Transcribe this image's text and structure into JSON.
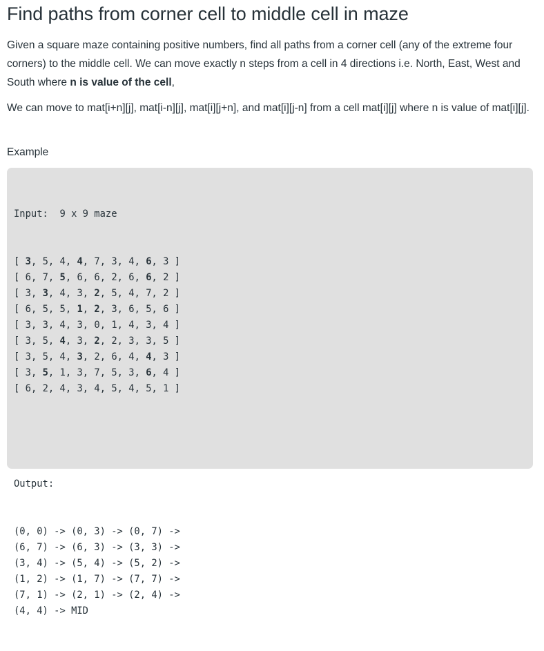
{
  "title": "Find paths from corner cell to middle cell in maze",
  "para1": {
    "text_a": "Given a square maze containing positive numbers, find all paths from a corner cell (any of the extreme four corners) to the middle cell. We can move exactly n steps from a cell in 4 directions i.e. North, East, West and South where ",
    "bold": "n is value of the cell",
    "text_b": ","
  },
  "para2": "We can move to mat[i+n][j], mat[i-n][j], mat[i][j+n], and mat[i][j-n] from a cell mat[i][j] where n is value of mat[i][j].",
  "example_label": "Example",
  "code": {
    "input_label": "Input:  9 x 9 maze",
    "matrix": [
      [
        "3",
        "5",
        "4",
        "4",
        "7",
        "3",
        "4",
        "6",
        "3"
      ],
      [
        "6",
        "7",
        "5",
        "6",
        "6",
        "2",
        "6",
        "6",
        "2"
      ],
      [
        "3",
        "3",
        "4",
        "3",
        "2",
        "5",
        "4",
        "7",
        "2"
      ],
      [
        "6",
        "5",
        "5",
        "1",
        "2",
        "3",
        "6",
        "5",
        "6"
      ],
      [
        "3",
        "3",
        "4",
        "3",
        "0",
        "1",
        "4",
        "3",
        "4"
      ],
      [
        "3",
        "5",
        "4",
        "3",
        "2",
        "2",
        "3",
        "3",
        "5"
      ],
      [
        "3",
        "5",
        "4",
        "3",
        "2",
        "6",
        "4",
        "4",
        "3"
      ],
      [
        "3",
        "5",
        "1",
        "3",
        "7",
        "5",
        "3",
        "6",
        "4"
      ],
      [
        "6",
        "2",
        "4",
        "3",
        "4",
        "5",
        "4",
        "5",
        "1"
      ]
    ],
    "bold_cells": [
      [
        0,
        0
      ],
      [
        0,
        3
      ],
      [
        0,
        7
      ],
      [
        1,
        2
      ],
      [
        1,
        7
      ],
      [
        2,
        1
      ],
      [
        2,
        4
      ],
      [
        3,
        3
      ],
      [
        3,
        4
      ],
      [
        5,
        2
      ],
      [
        5,
        4
      ],
      [
        6,
        3
      ],
      [
        6,
        7
      ],
      [
        7,
        1
      ],
      [
        7,
        7
      ]
    ],
    "output_label": "Output:",
    "output_lines": [
      "(0, 0) -> (0, 3) -> (0, 7) ->",
      "(6, 7) -> (6, 3) -> (3, 3) ->",
      "(3, 4) -> (5, 4) -> (5, 2) ->",
      "(1, 2) -> (1, 7) -> (7, 7) ->",
      "(7, 1) -> (2, 1) -> (2, 4) ->",
      "(4, 4) -> MID"
    ]
  }
}
